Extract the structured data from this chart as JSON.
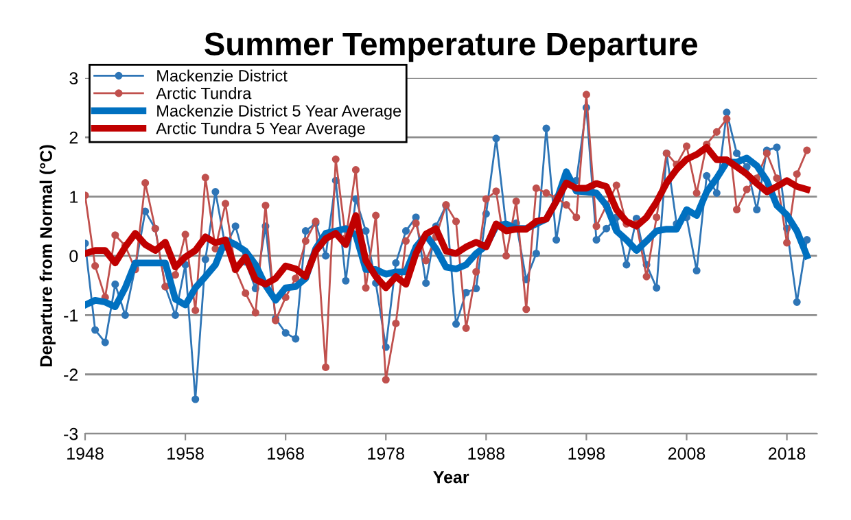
{
  "chart_data": {
    "type": "line",
    "title": "Summer Temperature Departure",
    "xlabel": "Year",
    "ylabel": "Departure from Normal (°C)",
    "x": [
      1948,
      1949,
      1950,
      1951,
      1952,
      1953,
      1954,
      1955,
      1956,
      1957,
      1958,
      1959,
      1960,
      1961,
      1962,
      1963,
      1964,
      1965,
      1966,
      1967,
      1968,
      1969,
      1970,
      1971,
      1972,
      1973,
      1974,
      1975,
      1976,
      1977,
      1978,
      1979,
      1980,
      1981,
      1982,
      1983,
      1984,
      1985,
      1986,
      1987,
      1988,
      1989,
      1990,
      1991,
      1992,
      1993,
      1994,
      1995,
      1996,
      1997,
      1998,
      1999,
      2000,
      2001,
      2002,
      2003,
      2004,
      2005,
      2006,
      2007,
      2008,
      2009,
      2010,
      2011,
      2012,
      2013,
      2014,
      2015,
      2016,
      2017,
      2018,
      2019,
      2020
    ],
    "series": [
      {
        "name": "Mackenzie District",
        "color": "#2e75b6",
        "marker": "circle",
        "values": [
          0.21,
          -1.25,
          -1.46,
          -0.48,
          -1.0,
          -0.2,
          0.75,
          0.46,
          -0.52,
          -1.0,
          -0.15,
          -2.42,
          -0.06,
          1.08,
          0.15,
          0.5,
          -0.1,
          -0.55,
          0.5,
          -1.06,
          -1.3,
          -1.4,
          0.42,
          0.55,
          0.0,
          1.27,
          -0.42,
          0.96,
          0.42,
          -0.46,
          -1.54,
          -0.12,
          0.42,
          0.65,
          -0.46,
          0.5,
          0.85,
          -1.15,
          -0.62,
          -0.55,
          0.71,
          1.98,
          0.5,
          0.55,
          -0.4,
          0.04,
          2.15,
          0.27,
          1.3,
          1.27,
          2.5,
          0.27,
          0.46,
          0.65,
          -0.15,
          0.63,
          -0.15,
          -0.54,
          1.73,
          0.54,
          0.65,
          -0.25,
          1.35,
          1.06,
          2.42,
          1.73,
          1.5,
          0.78,
          1.78,
          1.83,
          0.46,
          -0.78,
          0.27
        ]
      },
      {
        "name": "Arctic Tundra",
        "color": "#c0504d",
        "marker": "circle",
        "values": [
          1.02,
          -0.17,
          -0.7,
          0.35,
          0.17,
          -0.23,
          1.23,
          0.46,
          -0.52,
          -0.32,
          0.36,
          -0.92,
          1.32,
          0.12,
          0.88,
          -0.23,
          -0.63,
          -0.96,
          0.85,
          -1.09,
          -0.7,
          -0.38,
          0.25,
          0.58,
          -1.88,
          1.63,
          0.3,
          1.45,
          -0.54,
          0.68,
          -2.09,
          -1.14,
          0.25,
          0.55,
          -0.08,
          0.32,
          0.86,
          0.58,
          -1.22,
          -0.27,
          0.96,
          1.09,
          0.0,
          0.92,
          -0.9,
          1.14,
          1.06,
          0.98,
          0.86,
          0.65,
          2.72,
          0.5,
          0.85,
          1.19,
          0.54,
          0.54,
          -0.35,
          0.65,
          1.73,
          1.54,
          1.85,
          1.06,
          1.88,
          2.09,
          2.31,
          0.78,
          1.12,
          1.31,
          1.73,
          1.31,
          0.22,
          1.38,
          1.78
        ]
      },
      {
        "name": "Mackenzie District 5 Year Average",
        "color": "#0070c0",
        "marker": "none",
        "values": [
          -0.83,
          -0.75,
          -0.78,
          -0.86,
          -0.54,
          -0.12,
          -0.12,
          -0.12,
          -0.12,
          -0.73,
          -0.83,
          -0.54,
          -0.35,
          -0.15,
          0.27,
          0.19,
          0.08,
          -0.15,
          -0.5,
          -0.75,
          -0.54,
          -0.52,
          -0.38,
          0.12,
          0.38,
          0.42,
          0.46,
          0.35,
          -0.23,
          -0.23,
          -0.31,
          -0.27,
          -0.27,
          0.15,
          0.35,
          0.12,
          -0.19,
          -0.22,
          -0.15,
          0.04,
          0.17,
          0.5,
          0.54,
          0.46,
          0.46,
          0.54,
          0.62,
          0.92,
          1.42,
          1.09,
          1.08,
          1.06,
          0.85,
          0.42,
          0.27,
          0.09,
          0.25,
          0.42,
          0.45,
          0.45,
          0.78,
          0.68,
          1.08,
          1.31,
          1.58,
          1.58,
          1.65,
          1.52,
          1.27,
          0.85,
          0.69,
          0.42,
          0.0
        ]
      },
      {
        "name": "Arctic Tundra 5 Year Average",
        "color": "#c00000",
        "marker": "none",
        "values": [
          0.04,
          0.09,
          0.09,
          -0.12,
          0.15,
          0.38,
          0.19,
          0.09,
          0.23,
          -0.19,
          -0.02,
          0.09,
          0.32,
          0.22,
          0.27,
          -0.23,
          -0.02,
          -0.4,
          -0.48,
          -0.38,
          -0.17,
          -0.22,
          -0.35,
          0.08,
          0.29,
          0.38,
          0.19,
          0.68,
          -0.08,
          -0.35,
          -0.54,
          -0.35,
          -0.48,
          0.04,
          0.37,
          0.46,
          0.08,
          0.04,
          0.15,
          0.23,
          0.15,
          0.54,
          0.42,
          0.45,
          0.45,
          0.58,
          0.62,
          0.92,
          1.23,
          1.14,
          1.14,
          1.22,
          1.17,
          0.78,
          0.58,
          0.5,
          0.65,
          0.91,
          1.23,
          1.46,
          1.63,
          1.71,
          1.83,
          1.62,
          1.62,
          1.5,
          1.38,
          1.22,
          1.08,
          1.17,
          1.27,
          1.17,
          1.12
        ]
      }
    ],
    "xlim": [
      1948,
      2021
    ],
    "xticks": [
      1948,
      1958,
      1968,
      1978,
      1988,
      1998,
      2008,
      2018
    ],
    "ylim": [
      -3,
      3
    ],
    "yticks": [
      -3,
      -2,
      -1,
      0,
      1,
      2,
      3
    ],
    "grid": "y",
    "legend": "top left",
    "line_style": "solid"
  }
}
